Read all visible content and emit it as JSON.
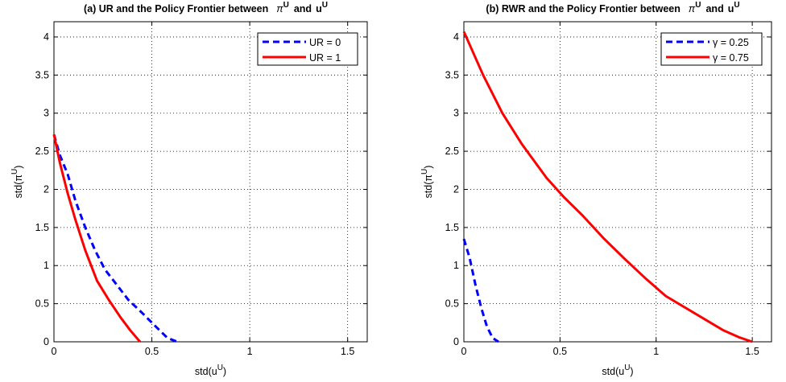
{
  "chart_data": [
    {
      "type": "line",
      "title": "(a) UR and the Policy Frontier between",
      "title_vars": [
        "π",
        "U",
        "and",
        "u",
        "U"
      ],
      "xlabel": "std(u",
      "xlabel_sup": "U",
      "ylabel": "std(π",
      "ylabel_sup": "U",
      "xlim": [
        0,
        1.6
      ],
      "ylim": [
        0,
        4.2
      ],
      "xticks": [
        "0",
        "0.5",
        "1",
        "1.5"
      ],
      "yticks": [
        "0",
        "0.5",
        "1",
        "1.5",
        "2",
        "2.5",
        "3",
        "3.5",
        "4"
      ],
      "grid": true,
      "legend_position": "top-right",
      "series": [
        {
          "name": "UR = 0",
          "color": "#0000ff",
          "style": "dashed",
          "x": [
            0.0,
            0.03,
            0.07,
            0.11,
            0.16,
            0.21,
            0.26,
            0.32,
            0.38,
            0.45,
            0.52,
            0.58,
            0.63
          ],
          "y": [
            2.72,
            2.45,
            2.2,
            1.85,
            1.5,
            1.2,
            0.95,
            0.75,
            0.55,
            0.38,
            0.2,
            0.05,
            0.0
          ]
        },
        {
          "name": "UR = 1",
          "color": "#ff0000",
          "style": "solid",
          "x": [
            0.0,
            0.03,
            0.07,
            0.11,
            0.16,
            0.22,
            0.28,
            0.34,
            0.39,
            0.43,
            0.44
          ],
          "y": [
            2.72,
            2.35,
            1.95,
            1.6,
            1.2,
            0.8,
            0.55,
            0.32,
            0.15,
            0.03,
            0.0
          ]
        }
      ]
    },
    {
      "type": "line",
      "title": "(b) RWR and the Policy Frontier between",
      "title_vars": [
        "π",
        "U",
        "and",
        "u",
        "U"
      ],
      "xlabel": "std(u",
      "xlabel_sup": "U",
      "ylabel": "std(π",
      "ylabel_sup": "U",
      "xlim": [
        0,
        1.6
      ],
      "ylim": [
        0,
        4.2
      ],
      "xticks": [
        "0",
        "0.5",
        "1",
        "1.5"
      ],
      "yticks": [
        "0",
        "0.5",
        "1",
        "1.5",
        "2",
        "2.5",
        "3",
        "3.5",
        "4"
      ],
      "grid": true,
      "legend_position": "top-right",
      "series": [
        {
          "name": "γ = 0.25",
          "color": "#0000ff",
          "style": "dashed",
          "x": [
            0.0,
            0.03,
            0.06,
            0.09,
            0.12,
            0.15,
            0.18
          ],
          "y": [
            1.35,
            1.1,
            0.75,
            0.45,
            0.2,
            0.05,
            0.0
          ]
        },
        {
          "name": "γ = 0.75",
          "color": "#ff0000",
          "style": "solid",
          "x": [
            0.0,
            0.1,
            0.2,
            0.3,
            0.43,
            0.52,
            0.62,
            0.73,
            0.84,
            0.95,
            1.05,
            1.15,
            1.25,
            1.35,
            1.43,
            1.5
          ],
          "y": [
            4.07,
            3.5,
            3.0,
            2.6,
            2.15,
            1.9,
            1.65,
            1.35,
            1.08,
            0.82,
            0.6,
            0.45,
            0.3,
            0.15,
            0.06,
            0.0
          ]
        }
      ]
    }
  ]
}
